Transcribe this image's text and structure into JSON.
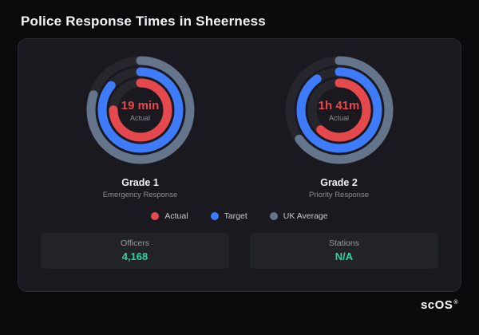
{
  "page": {
    "title": "Police Response Times in Sheerness",
    "brand": "scOS",
    "brand_reg": "®"
  },
  "colors": {
    "accent_red": "#e5484d",
    "accent_blue": "#3e7bfa",
    "accent_gray": "#64748b",
    "value_teal": "#2bd4a2",
    "ring_track": "#26262c",
    "card_bg": "#19191f",
    "page_bg": "#0b0b0e"
  },
  "legend": {
    "items": [
      {
        "label": "Actual",
        "color": "#e5484d"
      },
      {
        "label": "Target",
        "color": "#3e7bfa"
      },
      {
        "label": "UK Average",
        "color": "#64748b"
      }
    ]
  },
  "stats": {
    "items": [
      {
        "label": "Officers",
        "value": "4,168"
      },
      {
        "label": "Stations",
        "value": "N/A"
      }
    ]
  },
  "chart_data": [
    {
      "type": "radial-gauge",
      "title": "Grade 1",
      "subtitle": "Emergency Response",
      "center_value": "19 min",
      "center_label": "Actual",
      "rings_order_outer_to_inner": [
        "UK Average",
        "Target",
        "Actual"
      ],
      "series": [
        {
          "name": "Actual",
          "color": "#e5484d",
          "fraction": 0.75
        },
        {
          "name": "Target",
          "color": "#3e7bfa",
          "fraction": 0.86
        },
        {
          "name": "UK Average",
          "color": "#64748b",
          "fraction": 0.8
        }
      ],
      "legend_position": "bottom"
    },
    {
      "type": "radial-gauge",
      "title": "Grade 2",
      "subtitle": "Priority Response",
      "center_value": "1h 41m",
      "center_label": "Actual",
      "rings_order_outer_to_inner": [
        "UK Average",
        "Target",
        "Actual"
      ],
      "series": [
        {
          "name": "Actual",
          "color": "#e5484d",
          "fraction": 0.62
        },
        {
          "name": "Target",
          "color": "#3e7bfa",
          "fraction": 0.9
        },
        {
          "name": "UK Average",
          "color": "#64748b",
          "fraction": 0.65
        }
      ],
      "legend_position": "bottom"
    }
  ]
}
